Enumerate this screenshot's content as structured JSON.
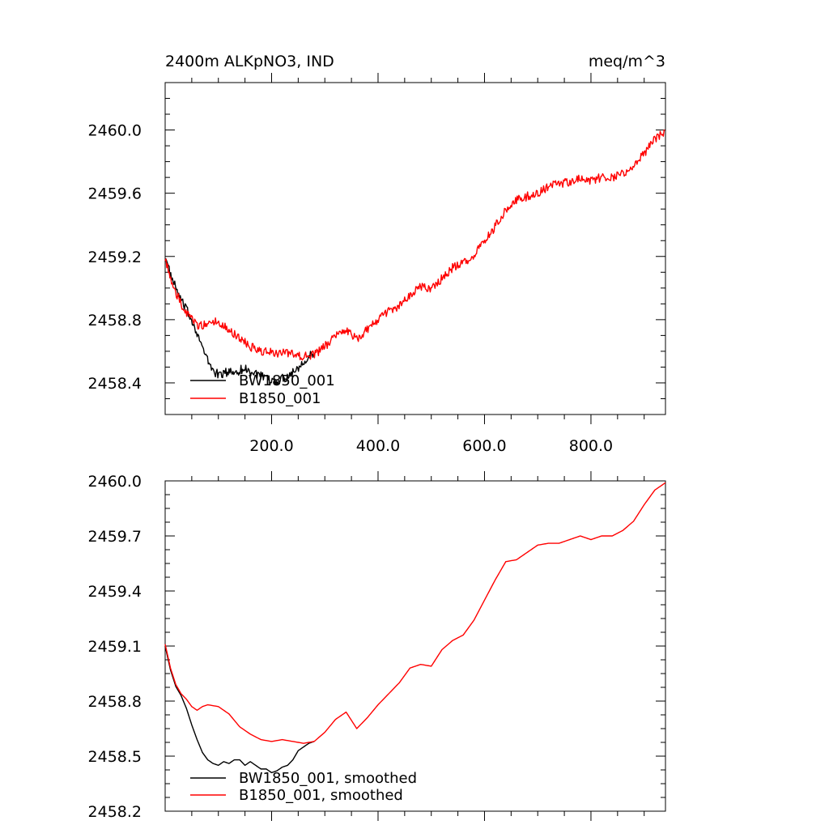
{
  "figure": {
    "title_left": "2400m ALKpNO3, IND",
    "title_right": "meq/m^3"
  },
  "chart_data": [
    {
      "type": "line",
      "title": "2400m ALKpNO3, IND",
      "units": "meq/m^3",
      "xlim": [
        0,
        940
      ],
      "ylim": [
        2458.2,
        2460.3
      ],
      "xticks": [
        200,
        400,
        600,
        800
      ],
      "xtick_labels": [
        "200.0",
        "400.0",
        "600.0",
        "800.0"
      ],
      "yticks": [
        2458.4,
        2458.8,
        2459.2,
        2459.6,
        2460.0
      ],
      "ytick_labels": [
        "2458.4",
        "2458.8",
        "2459.2",
        "2459.6",
        "2460.0"
      ],
      "grid": false,
      "legend_position": "bottom-left",
      "series": [
        {
          "name": "BW1850_001",
          "color": "#000000",
          "noise": 0.03,
          "x": [
            0,
            10,
            20,
            30,
            40,
            50,
            60,
            70,
            80,
            90,
            100,
            110,
            120,
            130,
            140,
            150,
            160,
            170,
            180,
            190,
            200,
            210,
            220,
            230,
            240,
            250,
            260,
            270,
            280
          ],
          "values": [
            2459.2,
            2459.08,
            2459.0,
            2458.92,
            2458.86,
            2458.8,
            2458.72,
            2458.62,
            2458.54,
            2458.48,
            2458.45,
            2458.46,
            2458.47,
            2458.47,
            2458.48,
            2458.49,
            2458.47,
            2458.46,
            2458.44,
            2458.42,
            2458.41,
            2458.41,
            2458.43,
            2458.44,
            2458.47,
            2458.5,
            2458.54,
            2458.57,
            2458.58
          ]
        },
        {
          "name": "B1850_001",
          "color": "#ff0000",
          "noise": 0.028,
          "x": [
            0,
            10,
            20,
            30,
            40,
            50,
            60,
            70,
            80,
            100,
            120,
            140,
            160,
            180,
            200,
            220,
            240,
            260,
            280,
            300,
            320,
            340,
            360,
            380,
            400,
            420,
            440,
            460,
            480,
            500,
            520,
            540,
            560,
            580,
            600,
            620,
            640,
            660,
            680,
            700,
            720,
            740,
            760,
            780,
            800,
            820,
            840,
            860,
            880,
            900,
            920,
            940
          ],
          "values": [
            2459.2,
            2459.05,
            2458.97,
            2458.9,
            2458.84,
            2458.8,
            2458.77,
            2458.76,
            2458.78,
            2458.79,
            2458.74,
            2458.68,
            2458.63,
            2458.6,
            2458.59,
            2458.59,
            2458.58,
            2458.57,
            2458.58,
            2458.63,
            2458.7,
            2458.74,
            2458.68,
            2458.74,
            2458.8,
            2458.85,
            2458.89,
            2458.96,
            2459.01,
            2458.99,
            2459.06,
            2459.13,
            2459.16,
            2459.21,
            2459.29,
            2459.39,
            2459.49,
            2459.56,
            2459.58,
            2459.6,
            2459.64,
            2459.66,
            2459.67,
            2459.69,
            2459.68,
            2459.7,
            2459.7,
            2459.73,
            2459.77,
            2459.85,
            2459.94,
            2460.0
          ]
        }
      ]
    },
    {
      "type": "line",
      "title": "",
      "xlim": [
        0,
        940
      ],
      "ylim": [
        2458.2,
        2460.0
      ],
      "xticks": [
        200,
        400,
        600,
        800
      ],
      "xtick_labels": [],
      "yticks": [
        2458.2,
        2458.5,
        2458.8,
        2459.1,
        2459.4,
        2459.7,
        2460.0
      ],
      "ytick_labels": [
        "2458.2",
        "2458.5",
        "2458.8",
        "2459.1",
        "2459.4",
        "2459.7",
        "2460.0"
      ],
      "grid": false,
      "legend_position": "bottom-left",
      "series": [
        {
          "name": "BW1850_001, smoothed",
          "color": "#000000",
          "noise": 0,
          "x": [
            0,
            10,
            20,
            30,
            40,
            50,
            60,
            70,
            80,
            90,
            100,
            110,
            120,
            130,
            140,
            150,
            160,
            170,
            180,
            190,
            200,
            210,
            220,
            230,
            240,
            250,
            260,
            270,
            280
          ],
          "values": [
            2459.1,
            2458.97,
            2458.88,
            2458.83,
            2458.76,
            2458.67,
            2458.59,
            2458.52,
            2458.48,
            2458.46,
            2458.45,
            2458.47,
            2458.46,
            2458.48,
            2458.48,
            2458.45,
            2458.47,
            2458.45,
            2458.43,
            2458.43,
            2458.41,
            2458.42,
            2458.44,
            2458.45,
            2458.48,
            2458.53,
            2458.55,
            2458.57,
            2458.58
          ]
        },
        {
          "name": "B1850_001, smoothed",
          "color": "#ff0000",
          "noise": 0,
          "x": [
            0,
            10,
            20,
            30,
            40,
            50,
            60,
            70,
            80,
            100,
            120,
            140,
            160,
            180,
            200,
            220,
            240,
            260,
            280,
            300,
            320,
            340,
            360,
            380,
            400,
            420,
            440,
            460,
            480,
            500,
            520,
            540,
            560,
            580,
            600,
            620,
            640,
            660,
            680,
            700,
            720,
            740,
            760,
            780,
            800,
            820,
            840,
            860,
            880,
            900,
            920,
            940
          ],
          "values": [
            2459.11,
            2458.98,
            2458.89,
            2458.84,
            2458.81,
            2458.77,
            2458.75,
            2458.77,
            2458.78,
            2458.77,
            2458.73,
            2458.66,
            2458.62,
            2458.59,
            2458.58,
            2458.59,
            2458.58,
            2458.57,
            2458.58,
            2458.63,
            2458.7,
            2458.74,
            2458.65,
            2458.71,
            2458.78,
            2458.84,
            2458.9,
            2458.98,
            2459.0,
            2458.99,
            2459.08,
            2459.13,
            2459.16,
            2459.24,
            2459.35,
            2459.46,
            2459.56,
            2459.57,
            2459.61,
            2459.65,
            2459.66,
            2459.66,
            2459.68,
            2459.7,
            2459.68,
            2459.7,
            2459.7,
            2459.73,
            2459.78,
            2459.87,
            2459.95,
            2459.99
          ]
        }
      ]
    }
  ]
}
